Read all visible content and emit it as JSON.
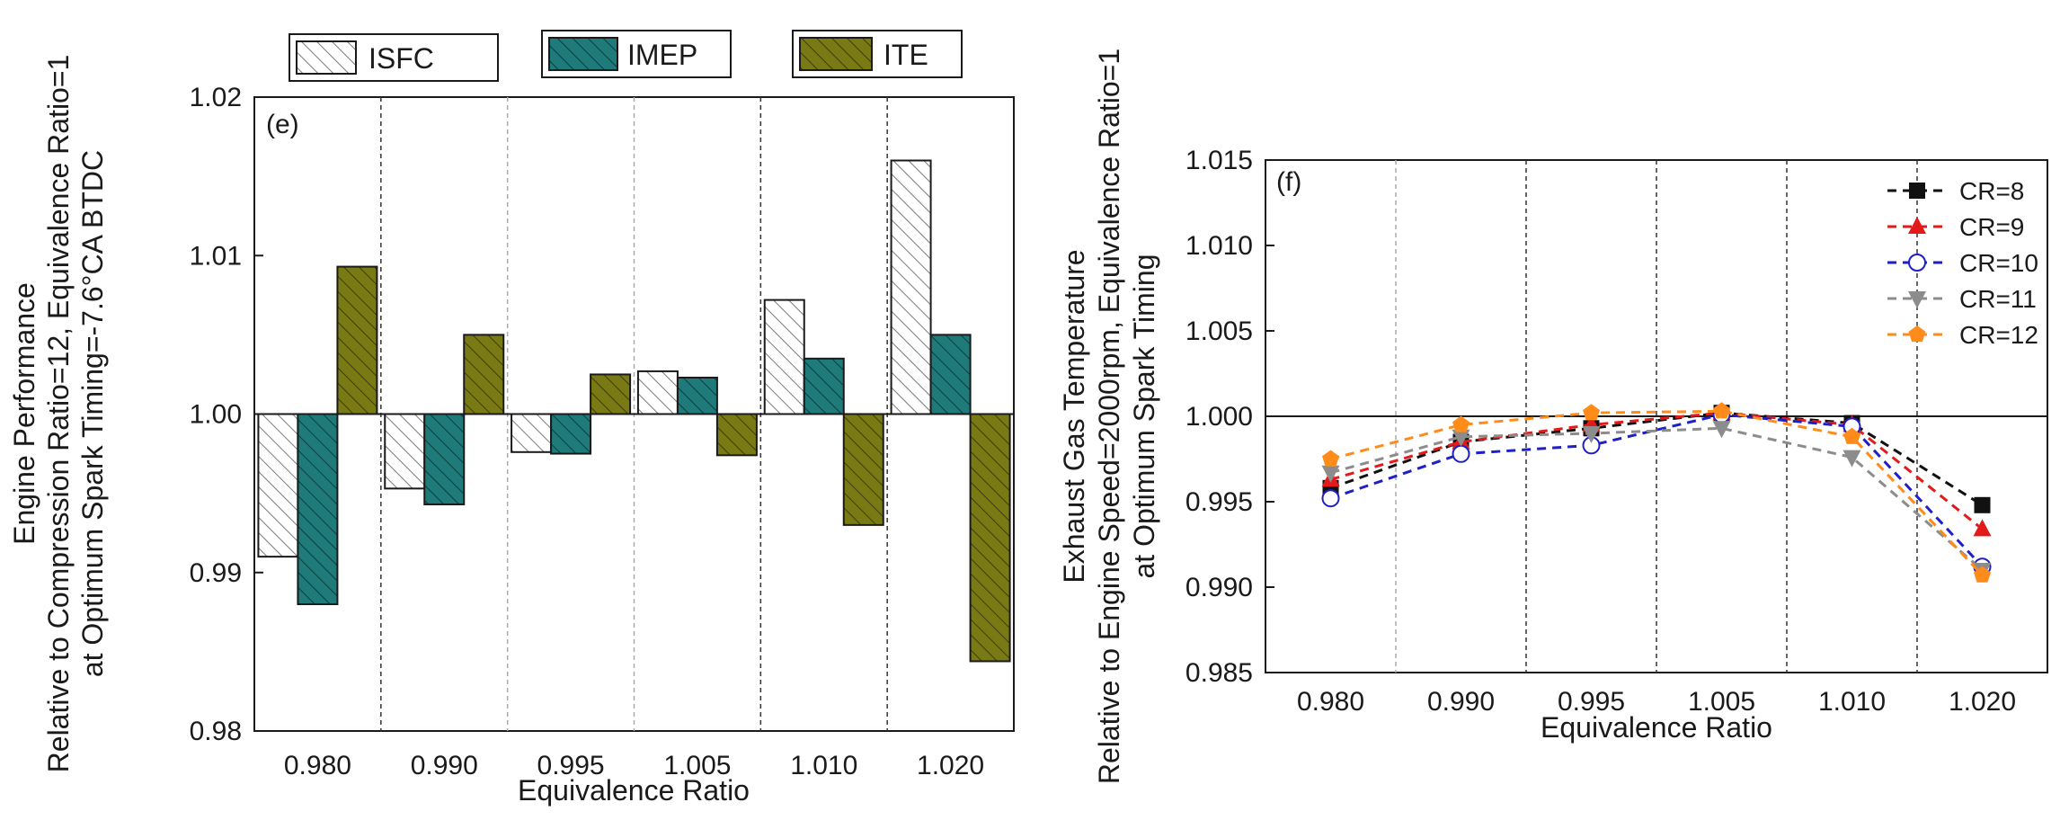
{
  "chart_data": [
    {
      "panel": "(e)",
      "type": "bar",
      "xlabel": "Equivalence Ratio",
      "ylabel_lines": [
        "Engine Performance",
        "Relative to Compression Ratio=12, Equivalence Ratio=1",
        "at Optimum Spark Timing=-7.6°CA BTDC"
      ],
      "categories": [
        "0.980",
        "0.990",
        "0.995",
        "1.005",
        "1.010",
        "1.020"
      ],
      "ylim": [
        0.98,
        1.02
      ],
      "yticks": [
        "0.98",
        "0.99",
        "1.00",
        "1.01",
        "1.02"
      ],
      "baseline": 1.0,
      "series": [
        {
          "name": "ISFC",
          "color": "#ffffff",
          "pattern": "hatch-gray",
          "values": [
            0.991,
            0.9953,
            0.9976,
            1.0027,
            1.0072,
            1.016
          ]
        },
        {
          "name": "IMEP",
          "color": "#1f7a7a",
          "pattern": "hatch-dark",
          "values": [
            0.988,
            0.9943,
            0.9975,
            1.0023,
            1.0035,
            1.005
          ]
        },
        {
          "name": "ITE",
          "color": "#7a7a14",
          "pattern": "hatch-dark",
          "values": [
            1.0093,
            1.005,
            1.0025,
            0.9974,
            0.993,
            0.9844
          ]
        }
      ]
    },
    {
      "panel": "(f)",
      "type": "line",
      "xlabel": "Equivalence Ratio",
      "ylabel_lines": [
        "Exhaust Gas Temperature",
        "Relative to Engine Speed=2000rpm, Equivalence Ratio=1",
        "at Optimum Spark Timing"
      ],
      "categories": [
        "0.980",
        "0.990",
        "0.995",
        "1.005",
        "1.010",
        "1.020"
      ],
      "ylim": [
        0.985,
        1.015
      ],
      "yticks": [
        "0.985",
        "0.990",
        "0.995",
        "1.000",
        "1.005",
        "1.010",
        "1.015"
      ],
      "baseline": 1.0,
      "legend_position": "top-right",
      "series": [
        {
          "name": "CR=8",
          "color": "#111111",
          "marker": "square",
          "values": [
            0.9958,
            0.9985,
            0.9993,
            1.0002,
            0.9996,
            0.9948
          ]
        },
        {
          "name": "CR=9",
          "color": "#e41a1a",
          "marker": "triangle-up",
          "values": [
            0.9963,
            0.9985,
            0.9995,
            1.0002,
            0.9995,
            0.9934
          ]
        },
        {
          "name": "CR=10",
          "color": "#1f1fc8",
          "marker": "circle-open",
          "values": [
            0.9952,
            0.9978,
            0.9983,
            1.0001,
            0.9994,
            0.9912
          ]
        },
        {
          "name": "CR=11",
          "color": "#8c8c8c",
          "marker": "triangle-down",
          "values": [
            0.9967,
            0.9988,
            0.999,
            0.9993,
            0.9976,
            0.991
          ]
        },
        {
          "name": "CR=12",
          "color": "#ff8c1a",
          "marker": "pentagon",
          "values": [
            0.9975,
            0.9995,
            1.0002,
            1.0003,
            0.9988,
            0.9907
          ]
        }
      ]
    }
  ]
}
